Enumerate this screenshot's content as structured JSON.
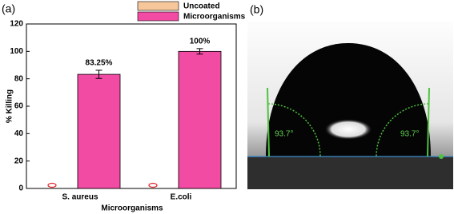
{
  "panel_a": {
    "label": "(a)"
  },
  "chart_data": {
    "type": "bar",
    "categories": [
      "S. aureus",
      "E.coli"
    ],
    "series": [
      {
        "name": "Uncoated",
        "color": "#f7c79c",
        "values": [
          0,
          0
        ]
      },
      {
        "name": "Microorganisms",
        "color": "#f24ba3",
        "values": [
          83.25,
          100
        ],
        "value_labels": [
          "83.25%",
          "100%"
        ],
        "errors": [
          3,
          2
        ]
      }
    ],
    "x_label": "Microorganisms",
    "y_label": "% Killing",
    "ylim": [
      0,
      120
    ],
    "yticks": [
      0,
      20,
      40,
      60,
      80,
      100,
      120
    ]
  },
  "panel_b": {
    "label": "(b)",
    "angle_labels": [
      "93.7°",
      "93.7°"
    ]
  }
}
